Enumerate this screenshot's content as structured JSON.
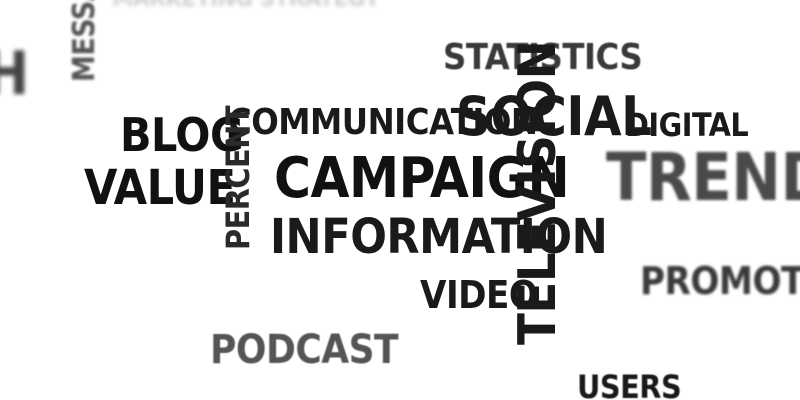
{
  "words": {
    "messages": "MESSAGES",
    "top_faded": "MARKETING STRATEGY",
    "left_h": "H",
    "statistics": "STATISTICS",
    "communication": "COMMUNICATION",
    "social": "SOCIAL",
    "digital": "DIGITAL",
    "blog": "BLOG",
    "value": "VALUE",
    "percent": "PERCENT",
    "campaign": "CAMPAIGN",
    "trend": "TREND",
    "information": "INFORMATION",
    "television": "TELEVISION",
    "promotion": "PROMOTION",
    "video": "VIDEO",
    "podcast": "PODCAST",
    "users": "USERS"
  },
  "colors": {
    "dark": "#1a1a1a",
    "mid": "#3a3a3a",
    "gray": "#555555",
    "light": "#bdbdbd"
  }
}
